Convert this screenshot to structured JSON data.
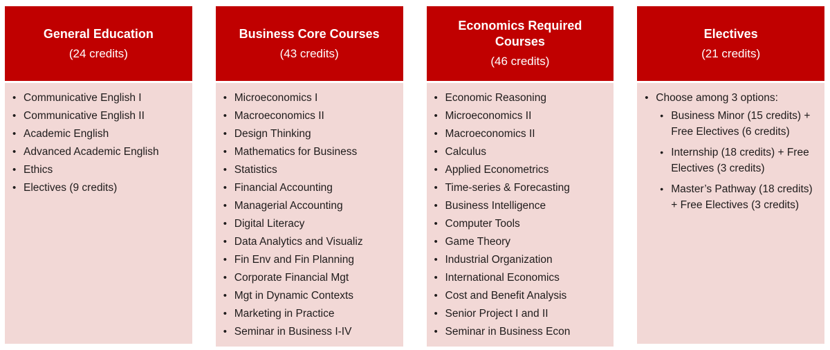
{
  "icons": {
    "bullet": "•"
  },
  "colors": {
    "header_bg": "#C00000",
    "header_text": "#FFFFFF",
    "body_bg": "#F2D8D6",
    "body_text": "#1E1B1B"
  },
  "columns": [
    {
      "title": "General Education",
      "credits": "(24 credits)",
      "items": [
        {
          "text": "Communicative English I"
        },
        {
          "text": "Communicative English II"
        },
        {
          "text": "Academic English"
        },
        {
          "text": "Advanced Academic English"
        },
        {
          "text": "Ethics"
        },
        {
          "text": "Electives (9 credits)"
        }
      ]
    },
    {
      "title": "Business Core Courses",
      "credits": "(43 credits)",
      "items": [
        {
          "text": "Microeconomics I"
        },
        {
          "text": "Macroeconomics II"
        },
        {
          "text": "Design Thinking"
        },
        {
          "text": "Mathematics for Business"
        },
        {
          "text": "Statistics"
        },
        {
          "text": "Financial Accounting"
        },
        {
          "text": "Managerial Accounting"
        },
        {
          "text": "Digital Literacy"
        },
        {
          "text": "Data Analytics and Visualiz"
        },
        {
          "text": "Fin Env and Fin Planning"
        },
        {
          "text": "Corporate Financial Mgt"
        },
        {
          "text": "Mgt in Dynamic Contexts"
        },
        {
          "text": "Marketing in Practice"
        },
        {
          "text": "Seminar in Business I-IV"
        }
      ]
    },
    {
      "title": "Economics Required Courses",
      "credits": "(46 credits)",
      "items": [
        {
          "text": "Economic Reasoning"
        },
        {
          "text": "Microeconomics II"
        },
        {
          "text": "Macroeconomics II"
        },
        {
          "text": "Calculus"
        },
        {
          "text": "Applied Econometrics"
        },
        {
          "text": "Time-series & Forecasting"
        },
        {
          "text": "Business Intelligence"
        },
        {
          "text": "Computer Tools"
        },
        {
          "text": "Game Theory"
        },
        {
          "text": "Industrial Organization"
        },
        {
          "text": "International Economics"
        },
        {
          "text": "Cost and Benefit Analysis"
        },
        {
          "text": "Senior Project I and II"
        },
        {
          "text": "Seminar in Business Econ"
        }
      ]
    },
    {
      "title": "Electives",
      "credits": "(21 credits)",
      "items": [
        {
          "text": "Choose among 3 options:",
          "children": [
            {
              "text": "Business Minor (15 credits) + Free Electives (6 credits)"
            },
            {
              "text": "Internship (18 credits) + Free Electives (3 credits)"
            },
            {
              "text": "Master’s Pathway (18 credits) + Free Electives (3 credits)"
            }
          ]
        }
      ]
    }
  ]
}
